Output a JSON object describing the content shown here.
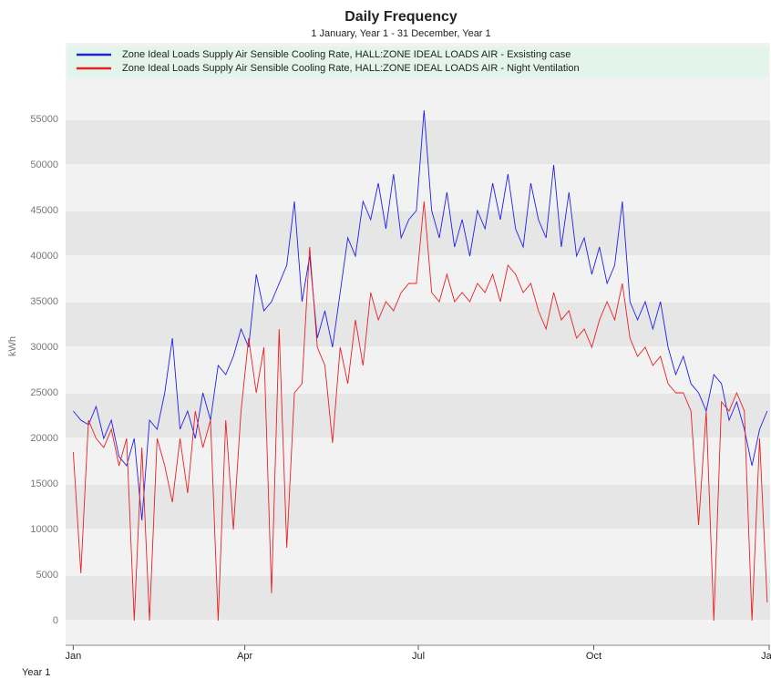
{
  "chart_data": {
    "type": "line",
    "title": "Daily Frequency",
    "subtitle": "1 January, Year 1 - 31 December, Year 1",
    "y_label": "kWh",
    "x_label": "Year 1",
    "xlim": [
      -3,
      366.5
    ],
    "xticks": [
      {
        "value": 1,
        "label": "Jan"
      },
      {
        "value": 91,
        "label": "Apr"
      },
      {
        "value": 182,
        "label": "Jul"
      },
      {
        "value": 274,
        "label": "Oct"
      },
      {
        "value": 366,
        "label": "Jan"
      }
    ],
    "ylim": [
      -2700,
      63400
    ],
    "yticks": [
      0,
      5000,
      10000,
      15000,
      20000,
      25000,
      30000,
      35000,
      40000,
      45000,
      50000,
      55000
    ],
    "grid": true,
    "legend": "top",
    "x": [
      1,
      5,
      9,
      13,
      17,
      21,
      25,
      29,
      33,
      37,
      41,
      45,
      49,
      53,
      57,
      61,
      65,
      69,
      73,
      77,
      81,
      85,
      89,
      93,
      97,
      101,
      105,
      109,
      113,
      117,
      121,
      125,
      129,
      133,
      137,
      141,
      145,
      149,
      153,
      157,
      161,
      165,
      169,
      173,
      177,
      181,
      185,
      189,
      193,
      197,
      201,
      205,
      209,
      213,
      217,
      221,
      225,
      229,
      233,
      237,
      241,
      245,
      249,
      253,
      257,
      261,
      265,
      269,
      273,
      277,
      281,
      285,
      289,
      293,
      297,
      301,
      305,
      309,
      313,
      317,
      321,
      325,
      329,
      333,
      337,
      341,
      345,
      349,
      353,
      357,
      361,
      365
    ],
    "series": [
      {
        "name": "Zone Ideal Loads Supply Air Sensible Cooling Rate, HALL:ZONE IDEAL LOADS AIR - Exsisting case",
        "color": "#1f1fe8",
        "values": [
          23000,
          22000,
          21500,
          23500,
          20000,
          22000,
          18000,
          17000,
          20000,
          11000,
          22000,
          21000,
          25000,
          31000,
          21000,
          23000,
          20000,
          25000,
          22000,
          28000,
          27000,
          29000,
          32000,
          30000,
          38000,
          34000,
          35000,
          37000,
          39000,
          46000,
          35000,
          40000,
          31000,
          34000,
          30000,
          36000,
          42000,
          40000,
          46000,
          44000,
          48000,
          43000,
          49000,
          42000,
          44000,
          45000,
          56000,
          45000,
          42000,
          47000,
          41000,
          44000,
          40000,
          45000,
          43000,
          48000,
          44000,
          49000,
          43000,
          41000,
          48000,
          44000,
          42000,
          50000,
          41000,
          47000,
          40000,
          42000,
          38000,
          41000,
          37000,
          39000,
          46000,
          35000,
          33000,
          35000,
          32000,
          35000,
          30000,
          27000,
          29000,
          26000,
          25000,
          23000,
          27000,
          26000,
          22000,
          24000,
          21000,
          17000,
          21000,
          23000
        ]
      },
      {
        "name": "Zone Ideal Loads Supply Air Sensible Cooling Rate, HALL:ZONE IDEAL LOADS AIR - Night Ventilation",
        "color": "#e82020",
        "values": [
          18500,
          5200,
          22000,
          20000,
          19000,
          21000,
          17000,
          20000,
          0,
          19000,
          0,
          20000,
          17000,
          13000,
          20000,
          14000,
          23000,
          19000,
          22000,
          0,
          22000,
          10000,
          23000,
          31000,
          25000,
          30000,
          3000,
          32000,
          8000,
          25000,
          26000,
          41000,
          30000,
          28000,
          19500,
          30000,
          26000,
          33000,
          28000,
          36000,
          33000,
          35000,
          34000,
          36000,
          37000,
          37000,
          46000,
          36000,
          35000,
          38000,
          35000,
          36000,
          35000,
          37000,
          36000,
          38000,
          35000,
          39000,
          38000,
          36000,
          37000,
          34000,
          32000,
          36000,
          33000,
          34000,
          31000,
          32000,
          30000,
          33000,
          35000,
          33000,
          37000,
          31000,
          29000,
          30000,
          28000,
          29000,
          26000,
          25000,
          25000,
          23000,
          10500,
          23000,
          0,
          24000,
          23000,
          25000,
          23000,
          0,
          20000,
          2000
        ]
      }
    ]
  }
}
